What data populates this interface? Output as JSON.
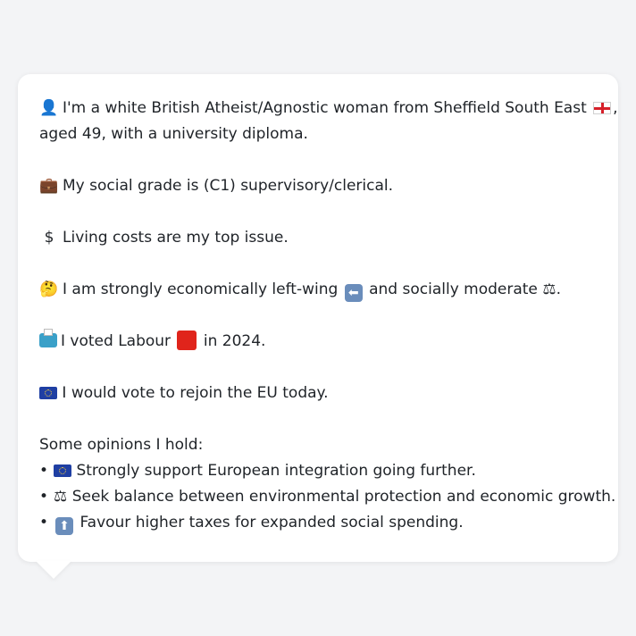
{
  "profile": {
    "line1_part1": "I'm a white British Atheist/Agnostic woman from Sheffield South East",
    "line1_part2": ",",
    "line1_cont": "aged 49, with a university diploma.",
    "social_grade": "My social grade is (C1) supervisory/clerical.",
    "top_issue": "Living costs are my top issue.",
    "ideology_part1": "I am strongly economically left-wing",
    "ideology_part2": "and socially moderate",
    "ideology_part3": ".",
    "vote_part1": "I voted Labour",
    "vote_part2": "in 2024.",
    "eu": "I would vote to rejoin the EU today."
  },
  "opinions": {
    "heading": "Some opinions I hold:",
    "items": [
      "Strongly support European integration going further.",
      "Seek balance between environmental protection and economic growth.",
      "Favour higher taxes for expanded social spending."
    ]
  },
  "icons": {
    "person": "person-icon",
    "flag_england": "england-flag-icon",
    "briefcase": "briefcase-icon",
    "dollar": "dollar-sign-icon",
    "thinking": "thinking-face-icon",
    "left_arrow": "left-arrow-icon",
    "scales": "balance-scale-icon",
    "ballot": "ballot-box-icon",
    "red_square": "red-square-icon",
    "eu_flag": "eu-flag-icon",
    "up_arrow": "up-arrow-icon"
  },
  "colors": {
    "background": "#f3f4f6",
    "bubble": "#ffffff",
    "text": "#1f2328",
    "labour_red": "#e0241b",
    "eu_blue": "#1f3fa3"
  }
}
